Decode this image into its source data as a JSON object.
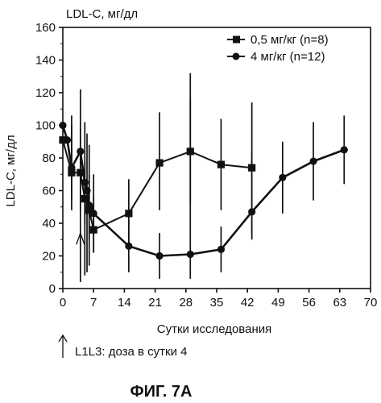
{
  "figure_caption": "ФИГ. 7А",
  "chart_data": {
    "type": "line",
    "title": "LDL-C, мг/дл",
    "xlabel": "Сутки исследования",
    "ylabel": "LDL-C, мг/дл",
    "xlim": [
      0,
      70
    ],
    "ylim": [
      0,
      160
    ],
    "xticks": [
      0,
      7,
      14,
      21,
      28,
      35,
      42,
      49,
      56,
      63,
      70
    ],
    "yticks": [
      0,
      20,
      40,
      60,
      80,
      100,
      120,
      140,
      160
    ],
    "grid": false,
    "legend_position": "top-right",
    "annotation": "L1L3: доза в сутки 4",
    "annotation_x": 0,
    "dose_marker_x": 4,
    "series": [
      {
        "name": "0,5 мг/кг (n=8)",
        "marker": "square",
        "points": [
          {
            "x": 0,
            "y": 91,
            "err_low": 91,
            "err_high": 91
          },
          {
            "x": 2,
            "y": 71,
            "err_low": 55,
            "err_high": 106
          },
          {
            "x": 4,
            "y": 71,
            "err_low": 48,
            "err_high": 98
          },
          {
            "x": 5,
            "y": 55,
            "err_low": 40,
            "err_high": 78
          },
          {
            "x": 6,
            "y": 48,
            "err_low": 30,
            "err_high": 70
          },
          {
            "x": 7,
            "y": 36,
            "err_low": 22,
            "err_high": 56
          },
          {
            "x": 15,
            "y": 46,
            "err_low": 26,
            "err_high": 67
          },
          {
            "x": 22,
            "y": 77,
            "err_low": 48,
            "err_high": 108
          },
          {
            "x": 29,
            "y": 84,
            "err_low": 52,
            "err_high": 116
          },
          {
            "x": 36,
            "y": 76,
            "err_low": 48,
            "err_high": 104
          },
          {
            "x": 43,
            "y": 74,
            "err_low": 34,
            "err_high": 114
          }
        ]
      },
      {
        "name": "4 мг/кг (n=12)",
        "marker": "circle",
        "points": [
          {
            "x": 0,
            "y": 100,
            "err_low": 100,
            "err_high": 100
          },
          {
            "x": 1,
            "y": 91,
            "err_low": 91,
            "err_high": 91
          },
          {
            "x": 2,
            "y": 74,
            "err_low": 48,
            "err_high": 100
          },
          {
            "x": 4,
            "y": 84,
            "err_low": 4,
            "err_high": 122
          },
          {
            "x": 5,
            "y": 65,
            "err_low": 8,
            "err_high": 102
          },
          {
            "x": 5.5,
            "y": 60,
            "err_low": 10,
            "err_high": 95
          },
          {
            "x": 6,
            "y": 51,
            "err_low": 14,
            "err_high": 88
          },
          {
            "x": 7,
            "y": 46,
            "err_low": 22,
            "err_high": 70
          },
          {
            "x": 15,
            "y": 26,
            "err_low": 10,
            "err_high": 42
          },
          {
            "x": 22,
            "y": 20,
            "err_low": 6,
            "err_high": 34
          },
          {
            "x": 29,
            "y": 21,
            "err_low": 6,
            "err_high": 132
          },
          {
            "x": 36,
            "y": 24,
            "err_low": 10,
            "err_high": 38
          },
          {
            "x": 43,
            "y": 47,
            "err_low": 30,
            "err_high": 84
          },
          {
            "x": 50,
            "y": 68,
            "err_low": 46,
            "err_high": 90
          },
          {
            "x": 57,
            "y": 78,
            "err_low": 54,
            "err_high": 102
          },
          {
            "x": 64,
            "y": 85,
            "err_low": 64,
            "err_high": 106
          }
        ]
      }
    ]
  }
}
